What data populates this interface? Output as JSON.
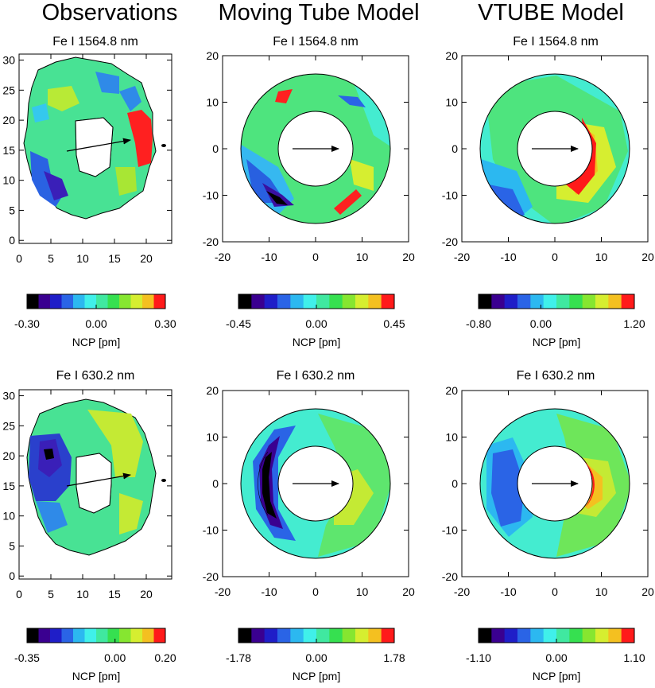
{
  "column_titles": [
    "Observations",
    "Moving Tube Model",
    "VTUBE Model"
  ],
  "colorbar_palette": [
    "#000000",
    "#3a0090",
    "#1f1ec8",
    "#2a64e6",
    "#2cb8f0",
    "#40f0ea",
    "#40e8a0",
    "#36e050",
    "#86e630",
    "#d6ee30",
    "#f4c020",
    "#ff1a1a"
  ],
  "chart_data": [
    {
      "type": "heatmap",
      "id": "obs-1564",
      "title": "Fe I 1564.8 nm",
      "x_ticks": [
        "0",
        "5",
        "10",
        "15",
        "20"
      ],
      "y_ticks": [
        "0",
        "5",
        "10",
        "15",
        "20",
        "25",
        "30"
      ],
      "xlim": [
        0,
        24
      ],
      "ylim": [
        -0.5,
        31
      ],
      "colorbar": {
        "ticks": [
          "-0.30",
          "0.00",
          "0.30"
        ],
        "label": "NCP [pm]",
        "range": [
          -0.3,
          0.3
        ]
      },
      "arrow": {
        "from": [
          5,
          14.5
        ],
        "to": [
          18.5,
          17
        ]
      }
    },
    {
      "type": "heatmap",
      "id": "mt-1564",
      "title": "Fe I 1564.8 nm",
      "x_ticks": [
        "-20",
        "-10",
        "0",
        "10",
        "20"
      ],
      "y_ticks": [
        "-20",
        "-10",
        "0",
        "10",
        "20"
      ],
      "xlim": [
        -20,
        20
      ],
      "ylim": [
        -20,
        20
      ],
      "colorbar": {
        "ticks": [
          "-0.45",
          "0.00",
          "0.45"
        ],
        "label": "NCP [pm]",
        "range": [
          -0.45,
          0.45
        ]
      },
      "arrow": {
        "from": [
          -5,
          0
        ],
        "to": [
          5,
          0
        ]
      }
    },
    {
      "type": "heatmap",
      "id": "vt-1564",
      "title": "Fe I 1564.8 nm",
      "x_ticks": [
        "-20",
        "-10",
        "0",
        "10",
        "20"
      ],
      "y_ticks": [
        "-20",
        "-10",
        "0",
        "10",
        "20"
      ],
      "xlim": [
        -20,
        20
      ],
      "ylim": [
        -20,
        20
      ],
      "colorbar": {
        "ticks": [
          "-0.80",
          "0.00",
          "1.20"
        ],
        "label": "NCP [pm]",
        "range": [
          -0.8,
          1.2
        ]
      },
      "arrow": {
        "from": [
          -5,
          0
        ],
        "to": [
          5,
          0
        ]
      }
    },
    {
      "type": "heatmap",
      "id": "obs-630",
      "title": "Fe I 630.2 nm",
      "x_ticks": [
        "0",
        "5",
        "10",
        "15",
        "20"
      ],
      "y_ticks": [
        "0",
        "5",
        "10",
        "15",
        "20",
        "25",
        "30"
      ],
      "xlim": [
        0,
        24
      ],
      "ylim": [
        -0.5,
        31
      ],
      "colorbar": {
        "ticks": [
          "-0.35",
          "0.00",
          "0.20"
        ],
        "label": "NCP [pm]",
        "range": [
          -0.35,
          0.2
        ]
      },
      "arrow": {
        "from": [
          5,
          14.5
        ],
        "to": [
          18.5,
          17
        ]
      }
    },
    {
      "type": "heatmap",
      "id": "mt-630",
      "title": "Fe I 630.2 nm",
      "x_ticks": [
        "-20",
        "-10",
        "0",
        "10",
        "20"
      ],
      "y_ticks": [
        "-20",
        "-10",
        "0",
        "10",
        "20"
      ],
      "xlim": [
        -20,
        20
      ],
      "ylim": [
        -20,
        20
      ],
      "colorbar": {
        "ticks": [
          "-1.78",
          "0.00",
          "1.78"
        ],
        "label": "NCP [pm]",
        "range": [
          -1.78,
          1.78
        ]
      },
      "arrow": {
        "from": [
          -5,
          0
        ],
        "to": [
          5,
          0
        ]
      }
    },
    {
      "type": "heatmap",
      "id": "vt-630",
      "title": "Fe I 630.2 nm",
      "x_ticks": [
        "-20",
        "-10",
        "0",
        "10",
        "20"
      ],
      "y_ticks": [
        "-20",
        "-10",
        "0",
        "10",
        "20"
      ],
      "xlim": [
        -20,
        20
      ],
      "ylim": [
        -20,
        20
      ],
      "colorbar": {
        "ticks": [
          "-1.10",
          "0.00",
          "1.10"
        ],
        "label": "NCP [pm]",
        "range": [
          -1.1,
          1.1
        ]
      },
      "arrow": {
        "from": [
          -5,
          0
        ],
        "to": [
          5,
          0
        ]
      }
    }
  ]
}
